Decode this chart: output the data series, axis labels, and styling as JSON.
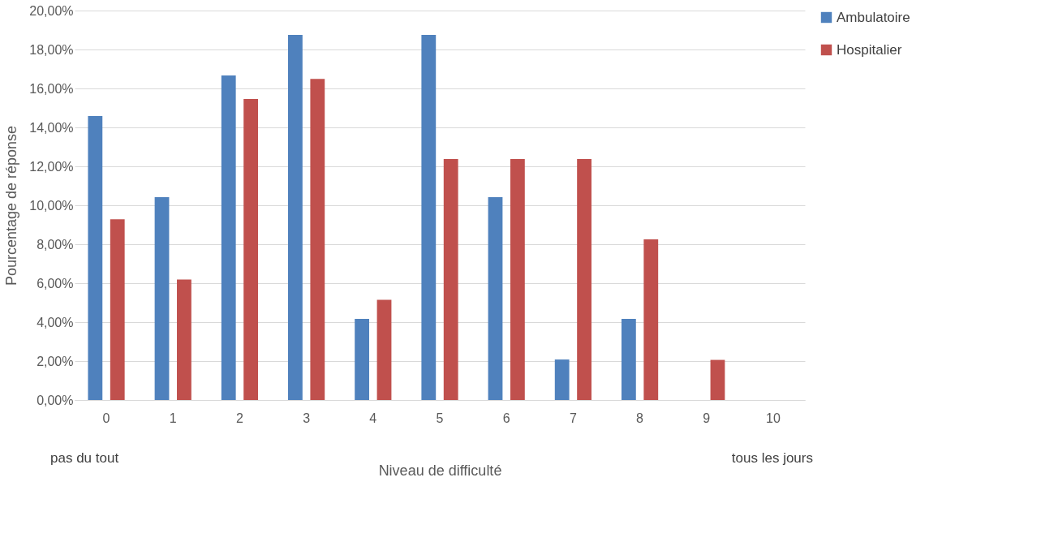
{
  "chart_data": {
    "type": "bar",
    "xlabel": "Niveau de difficulté",
    "ylabel": "Pourcentage de réponse",
    "categories": [
      "0",
      "1",
      "2",
      "3",
      "4",
      "5",
      "6",
      "7",
      "8",
      "9",
      "10"
    ],
    "series": [
      {
        "name": "Ambulatoire",
        "color": "#4f81bd",
        "values": [
          14.58,
          10.42,
          16.67,
          18.75,
          4.17,
          18.75,
          10.42,
          2.08,
          4.17,
          null,
          null
        ]
      },
      {
        "name": "Hospitalier",
        "color": "#c0504d",
        "values": [
          9.28,
          6.19,
          15.46,
          16.49,
          5.15,
          12.37,
          12.37,
          12.37,
          8.25,
          2.06,
          null
        ]
      }
    ],
    "ylim": [
      0,
      20
    ],
    "yticks": [
      {
        "value": 0,
        "label": "0,00%"
      },
      {
        "value": 2,
        "label": "2,00%"
      },
      {
        "value": 4,
        "label": "4,00%"
      },
      {
        "value": 6,
        "label": "6,00%"
      },
      {
        "value": 8,
        "label": "8,00%"
      },
      {
        "value": 10,
        "label": "10,00%"
      },
      {
        "value": 12,
        "label": "12,00%"
      },
      {
        "value": 14,
        "label": "14,00%"
      },
      {
        "value": 16,
        "label": "16,00%"
      },
      {
        "value": 18,
        "label": "18,00%"
      },
      {
        "value": 20,
        "label": "20,00%"
      }
    ],
    "grid": "y",
    "legend": "right",
    "annotations": [
      "pas du tout",
      "tous les jours"
    ]
  }
}
